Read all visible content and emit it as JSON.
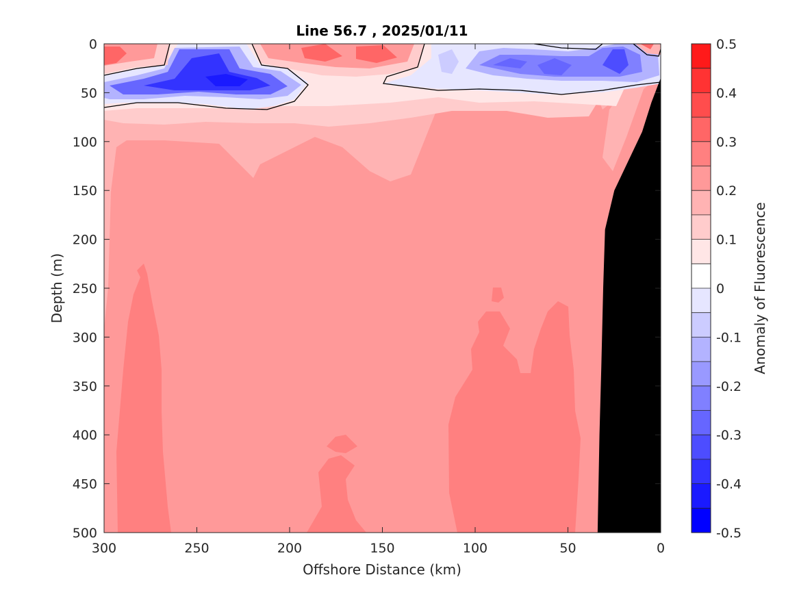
{
  "chart_data": {
    "type": "heatmap",
    "subtype": "filled-contour",
    "title": "Line 56.7 , 2025/01/11",
    "xlabel": "Offshore Distance (km)",
    "ylabel": "Depth (m)",
    "xlim": [
      300,
      0
    ],
    "ylim": [
      0,
      500
    ],
    "x_reversed": true,
    "y_reversed": true,
    "xticks": [
      300,
      250,
      200,
      150,
      100,
      50,
      0
    ],
    "yticks": [
      0,
      50,
      100,
      150,
      200,
      250,
      300,
      350,
      400,
      450,
      500
    ],
    "colorbar": {
      "label": "Anomaly of Fluorescence",
      "range": [
        -0.5,
        0.5
      ],
      "ticks": [
        "0.5",
        "0.4",
        "0.3",
        "0.2",
        "0.1",
        "0",
        "-0.1",
        "-0.2",
        "-0.3",
        "-0.4",
        "-0.5"
      ],
      "levels": [
        -0.5,
        -0.45,
        -0.4,
        -0.35,
        -0.3,
        -0.25,
        -0.2,
        -0.15,
        -0.1,
        -0.05,
        0,
        0.05,
        0.1,
        0.15,
        0.2,
        0.25,
        0.3,
        0.35,
        0.4,
        0.45,
        0.5
      ],
      "colors": [
        "#0000ff",
        "#1a1aff",
        "#3333ff",
        "#4d4dff",
        "#6666ff",
        "#8080ff",
        "#9999ff",
        "#b3b3ff",
        "#ccccff",
        "#e6e6ff",
        "#ffffff",
        "#ffffff",
        "#ffe6e6",
        "#ffcccc",
        "#ffb3b3",
        "#ff9999",
        "#ff8080",
        "#ff6666",
        "#ff4d4d",
        "#ff3333",
        "#ff1a1a",
        "#ff0000"
      ]
    },
    "regions": [
      {
        "label": "surface negative anomaly offshore",
        "value": -0.35,
        "x_range": [
          300,
          145
        ],
        "depth_range": [
          15,
          60
        ]
      },
      {
        "label": "surface positive patch offshore",
        "value": 0.3,
        "x_range": [
          300,
          275
        ],
        "depth_range": [
          0,
          30
        ]
      },
      {
        "label": "surface positive patch mid",
        "value": 0.3,
        "x_range": [
          215,
          130
        ],
        "depth_range": [
          0,
          30
        ]
      },
      {
        "label": "surface negative anomaly nearshore",
        "value": -0.25,
        "x_range": [
          120,
          20
        ],
        "depth_range": [
          5,
          45
        ]
      },
      {
        "label": "subsurface anomaly band",
        "value": 0.1,
        "x_range": [
          300,
          0
        ],
        "depth_range": [
          55,
          130
        ]
      },
      {
        "label": "deep background",
        "value": 0.2,
        "x_range": [
          300,
          35
        ],
        "depth_range": [
          130,
          500
        ]
      },
      {
        "label": "deep core 1",
        "value": 0.25,
        "x_range": [
          293,
          262
        ],
        "depth_range": [
          225,
          500
        ]
      },
      {
        "label": "deep core 2",
        "value": 0.25,
        "x_range": [
          190,
          155
        ],
        "depth_range": [
          395,
          500
        ]
      },
      {
        "label": "deep core 3",
        "value": 0.25,
        "x_range": [
          115,
          45
        ],
        "depth_range": [
          250,
          500
        ]
      }
    ],
    "bathymetry": {
      "color": "#000000",
      "points": [
        [
          0,
          35
        ],
        [
          5,
          60
        ],
        [
          10,
          90
        ],
        [
          20,
          130
        ],
        [
          25,
          150
        ],
        [
          30,
          190
        ],
        [
          31,
          250
        ],
        [
          32,
          330
        ],
        [
          33,
          400
        ],
        [
          34,
          500
        ]
      ]
    }
  }
}
